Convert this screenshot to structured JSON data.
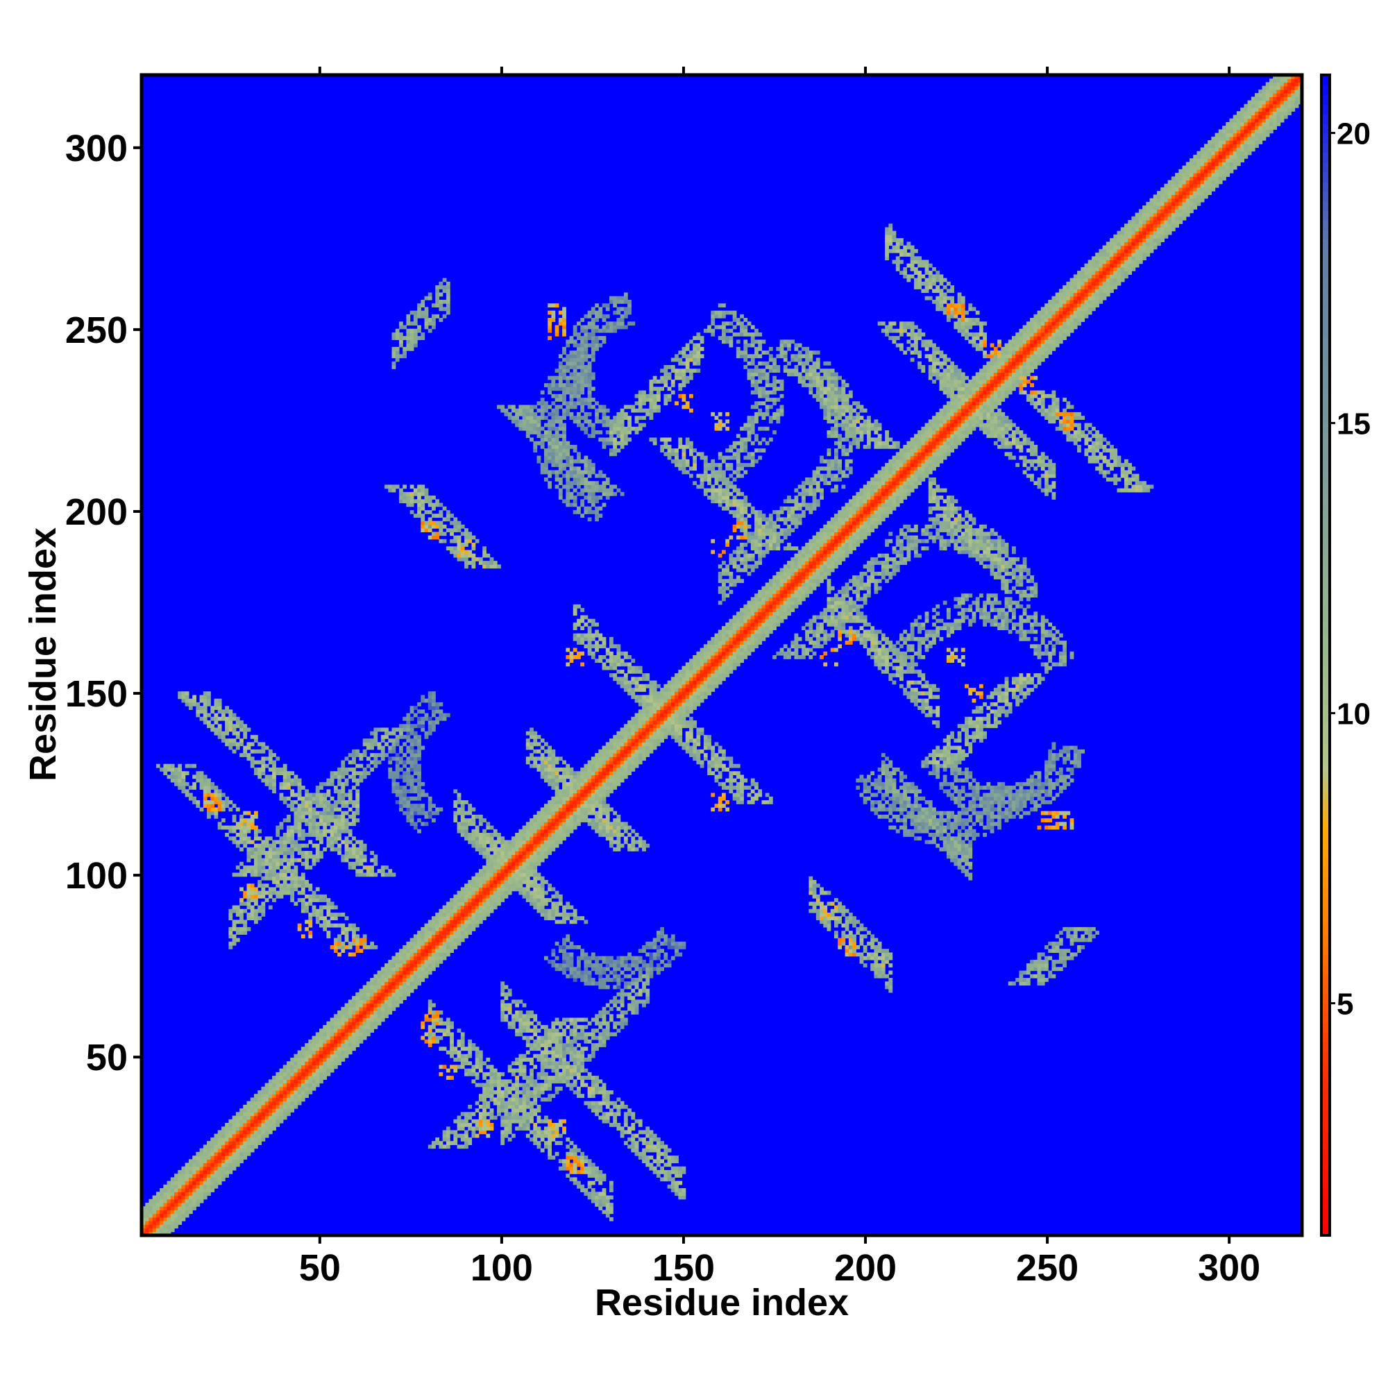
{
  "chart_data": {
    "type": "heatmap",
    "title": "",
    "xlabel": "Residue index",
    "ylabel": "Residue index",
    "xlim": [
      1,
      320
    ],
    "ylim": [
      1,
      320
    ],
    "x_ticks": [
      50,
      100,
      150,
      200,
      250,
      300
    ],
    "y_ticks": [
      50,
      100,
      150,
      200,
      250,
      300
    ],
    "x_tick_labels": [
      "50",
      "100",
      "150",
      "200",
      "250",
      "300"
    ],
    "y_tick_labels": [
      "50",
      "100",
      "150",
      "200",
      "250",
      "300"
    ],
    "colorbar": {
      "range": [
        1,
        21
      ],
      "ticks": [
        5,
        10,
        15,
        20
      ],
      "tick_labels": [
        "5",
        "10",
        "15",
        "20"
      ],
      "colors": [
        {
          "value": 1,
          "color": "#ff0000"
        },
        {
          "value": 4,
          "color": "#ff3300"
        },
        {
          "value": 6,
          "color": "#ff7700"
        },
        {
          "value": 8,
          "color": "#ffaa00"
        },
        {
          "value": 9,
          "color": "#b5c48a"
        },
        {
          "value": 11,
          "color": "#9ab98a"
        },
        {
          "value": 14,
          "color": "#7f9f9a"
        },
        {
          "value": 18,
          "color": "#5f7fa6"
        },
        {
          "value": 21,
          "color": "#0000ff"
        }
      ]
    },
    "background_color": "#0000ff",
    "grid": false,
    "symmetric": true,
    "diagonal_band": {
      "core_value": 2.5,
      "inner_halfwidth": 2,
      "outer_halfwidth": 7,
      "outer_value": 11
    },
    "contact_bands": [
      {
        "direction": "anti",
        "sum": 165,
        "from_x": 15,
        "to_x": 65,
        "value": 11
      },
      {
        "direction": "anti",
        "sum": 140,
        "from_x": 10,
        "to_x": 60,
        "value": 11
      },
      {
        "direction": "anti",
        "sum": 243,
        "from_x": 113,
        "to_x": 136,
        "value": 11
      },
      {
        "direction": "anti",
        "sum": 205,
        "from_x": 95,
        "to_x": 118,
        "value": 11
      },
      {
        "direction": "anti",
        "sum": 280,
        "from_x": 73,
        "to_x": 95,
        "value": 11
      },
      {
        "direction": "anti",
        "sum": 290,
        "from_x": 142,
        "to_x": 170,
        "value": 11
      },
      {
        "direction": "anti",
        "sum": 366,
        "from_x": 146,
        "to_x": 176,
        "value": 11
      },
      {
        "direction": "anti",
        "sum": 460,
        "from_x": 208,
        "to_x": 238,
        "value": 11
      },
      {
        "direction": "anti",
        "sum": 481,
        "from_x": 248,
        "to_x": 275,
        "value": 11
      },
      {
        "direction": "anti",
        "sum": 423,
        "from_x": 184,
        "to_x": 205,
        "value": 11
      },
      {
        "direction": "anti",
        "sum": 333,
        "from_x": 104,
        "to_x": 128,
        "value": 13
      },
      {
        "direction": "par",
        "diff": 60,
        "from_x": 25,
        "to_x": 60,
        "value": 11
      },
      {
        "direction": "par",
        "diff": 20,
        "from_x": 160,
        "to_x": 188,
        "value": 12
      },
      {
        "direction": "par",
        "diff": 175,
        "from_x": 70,
        "to_x": 85,
        "value": 12
      },
      {
        "direction": "par",
        "diff": -70,
        "from_x": 100,
        "to_x": 140,
        "value": 12
      },
      {
        "direction": "par",
        "diff": 90,
        "from_x": 130,
        "to_x": 155,
        "value": 11
      }
    ],
    "arc_features": [
      {
        "cx": 232,
        "cy": 150,
        "r": 23,
        "from_deg": 20,
        "to_deg": 160,
        "value": 11
      },
      {
        "cx": 222,
        "cy": 135,
        "r": 22,
        "from_deg": 200,
        "to_deg": 330,
        "value": 13
      },
      {
        "cx": 172,
        "cy": 222,
        "r": 22,
        "from_deg": -40,
        "to_deg": 80,
        "value": 11
      },
      {
        "cx": 138,
        "cy": 238,
        "r": 18,
        "from_deg": 100,
        "to_deg": 250,
        "value": 13
      },
      {
        "cx": 93,
        "cy": 130,
        "r": 20,
        "from_deg": 120,
        "to_deg": 230,
        "value": 14
      }
    ],
    "hotspots": [
      {
        "x": 20,
        "y": 120,
        "value": 6
      },
      {
        "x": 30,
        "y": 115,
        "value": 7
      },
      {
        "x": 45,
        "y": 85,
        "value": 6
      },
      {
        "x": 55,
        "y": 80,
        "value": 6
      },
      {
        "x": 80,
        "y": 60,
        "value": 6
      },
      {
        "x": 120,
        "y": 20,
        "value": 6
      },
      {
        "x": 95,
        "y": 30,
        "value": 7
      },
      {
        "x": 115,
        "y": 250,
        "value": 6
      },
      {
        "x": 160,
        "y": 225,
        "value": 7
      },
      {
        "x": 160,
        "y": 120,
        "value": 6
      },
      {
        "x": 225,
        "y": 255,
        "value": 6
      },
      {
        "x": 245,
        "y": 235,
        "value": 6
      },
      {
        "x": 190,
        "y": 90,
        "value": 7
      },
      {
        "x": 230,
        "y": 150,
        "value": 6
      },
      {
        "x": 255,
        "y": 115,
        "value": 7
      },
      {
        "x": 80,
        "y": 195,
        "value": 6
      },
      {
        "x": 165,
        "y": 195,
        "value": 6
      },
      {
        "x": 190,
        "y": 160,
        "value": 6
      }
    ]
  }
}
